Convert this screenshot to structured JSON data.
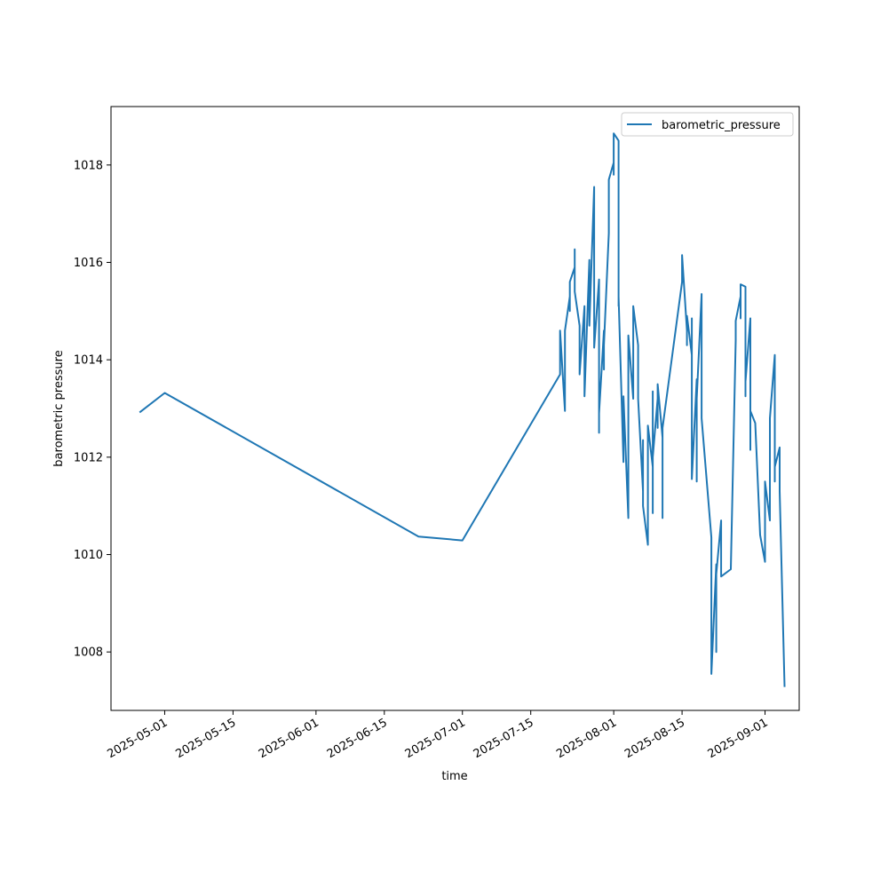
{
  "chart_data": {
    "type": "line",
    "title": "",
    "xlabel": "time",
    "ylabel": "barometric pressure",
    "x_is_date": true,
    "xlim": [
      "2025-04-20",
      "2025-09-08"
    ],
    "ylim": [
      1006.8,
      1019.2
    ],
    "x_ticks": [
      "2025-05-01",
      "2025-05-15",
      "2025-06-01",
      "2025-06-15",
      "2025-07-01",
      "2025-07-15",
      "2025-08-01",
      "2025-08-15",
      "2025-09-01"
    ],
    "y_ticks": [
      1008,
      1010,
      1012,
      1014,
      1016,
      1018
    ],
    "grid": false,
    "legend_position": "upper right",
    "colors": {
      "series": "#1f77b4"
    },
    "series": [
      {
        "name": "barometric_pressure",
        "points": [
          [
            "2025-04-26",
            1012.93
          ],
          [
            "2025-05-01",
            1013.32
          ],
          [
            "2025-06-22",
            1010.37
          ],
          [
            "2025-07-01",
            1010.29
          ],
          [
            "2025-07-21",
            1013.7
          ],
          [
            "2025-07-21",
            1014.6
          ],
          [
            "2025-07-22",
            1012.95
          ],
          [
            "2025-07-22",
            1014.6
          ],
          [
            "2025-07-23",
            1015.3
          ],
          [
            "2025-07-23",
            1015.0
          ],
          [
            "2025-07-23",
            1015.6
          ],
          [
            "2025-07-24",
            1015.9
          ],
          [
            "2025-07-24",
            1016.27
          ],
          [
            "2025-07-24",
            1015.4
          ],
          [
            "2025-07-25",
            1014.7
          ],
          [
            "2025-07-25",
            1014.0
          ],
          [
            "2025-07-25",
            1013.7
          ],
          [
            "2025-07-26",
            1015.1
          ],
          [
            "2025-07-26",
            1013.8
          ],
          [
            "2025-07-26",
            1014.9
          ],
          [
            "2025-07-26",
            1013.25
          ],
          [
            "2025-07-27",
            1016.05
          ],
          [
            "2025-07-27",
            1015.3
          ],
          [
            "2025-07-27",
            1014.7
          ],
          [
            "2025-07-28",
            1017.55
          ],
          [
            "2025-07-28",
            1014.6
          ],
          [
            "2025-07-28",
            1014.25
          ],
          [
            "2025-07-29",
            1015.65
          ],
          [
            "2025-07-29",
            1012.5
          ],
          [
            "2025-07-29",
            1013.1
          ],
          [
            "2025-07-29",
            1012.9
          ],
          [
            "2025-07-30",
            1014.6
          ],
          [
            "2025-07-30",
            1013.8
          ],
          [
            "2025-07-30",
            1014.3
          ],
          [
            "2025-07-31",
            1016.6
          ],
          [
            "2025-07-31",
            1017.7
          ],
          [
            "2025-08-01",
            1018.05
          ],
          [
            "2025-08-01",
            1017.8
          ],
          [
            "2025-08-01",
            1018.65
          ],
          [
            "2025-08-02",
            1018.5
          ],
          [
            "2025-08-02",
            1015.1
          ],
          [
            "2025-08-02",
            1015.75
          ],
          [
            "2025-08-02",
            1015.3
          ],
          [
            "2025-08-03",
            1011.9
          ],
          [
            "2025-08-03",
            1012.2
          ],
          [
            "2025-08-03",
            1012.0
          ],
          [
            "2025-08-03",
            1013.25
          ],
          [
            "2025-08-04",
            1010.75
          ],
          [
            "2025-08-04",
            1012.4
          ],
          [
            "2025-08-04",
            1014.5
          ],
          [
            "2025-08-05",
            1013.2
          ],
          [
            "2025-08-05",
            1013.9
          ],
          [
            "2025-08-05",
            1014.2
          ],
          [
            "2025-08-05",
            1015.1
          ],
          [
            "2025-08-06",
            1014.3
          ],
          [
            "2025-08-06",
            1013.4
          ],
          [
            "2025-08-06",
            1013.75
          ],
          [
            "2025-08-06",
            1013.2
          ],
          [
            "2025-08-07",
            1011.3
          ],
          [
            "2025-08-07",
            1011.05
          ],
          [
            "2025-08-07",
            1012.35
          ],
          [
            "2025-08-07",
            1011.0
          ],
          [
            "2025-08-08",
            1010.2
          ],
          [
            "2025-08-08",
            1011.5
          ],
          [
            "2025-08-08",
            1011.2
          ],
          [
            "2025-08-08",
            1012.65
          ],
          [
            "2025-08-09",
            1011.8
          ],
          [
            "2025-08-09",
            1010.85
          ],
          [
            "2025-08-09",
            1013.35
          ],
          [
            "2025-08-09",
            1012.0
          ],
          [
            "2025-08-10",
            1013.2
          ],
          [
            "2025-08-10",
            1012.6
          ],
          [
            "2025-08-10",
            1013.5
          ],
          [
            "2025-08-11",
            1012.4
          ],
          [
            "2025-08-11",
            1010.75
          ],
          [
            "2025-08-11",
            1012.6
          ],
          [
            "2025-08-15",
            1015.6
          ],
          [
            "2025-08-15",
            1016.15
          ],
          [
            "2025-08-16",
            1014.6
          ],
          [
            "2025-08-16",
            1014.3
          ],
          [
            "2025-08-16",
            1014.9
          ],
          [
            "2025-08-17",
            1014.1
          ],
          [
            "2025-08-17",
            1014.85
          ],
          [
            "2025-08-17",
            1011.55
          ],
          [
            "2025-08-18",
            1013.6
          ],
          [
            "2025-08-18",
            1011.5
          ],
          [
            "2025-08-18",
            1013.2
          ],
          [
            "2025-08-19",
            1015.35
          ],
          [
            "2025-08-19",
            1012.9
          ],
          [
            "2025-08-19",
            1013.6
          ],
          [
            "2025-08-19",
            1012.8
          ],
          [
            "2025-08-21",
            1010.35
          ],
          [
            "2025-08-21",
            1007.55
          ],
          [
            "2025-08-22",
            1009.8
          ],
          [
            "2025-08-22",
            1008.0
          ],
          [
            "2025-08-22",
            1009.6
          ],
          [
            "2025-08-23",
            1010.7
          ],
          [
            "2025-08-23",
            1009.55
          ],
          [
            "2025-08-25",
            1009.7
          ],
          [
            "2025-08-26",
            1014.4
          ],
          [
            "2025-08-26",
            1014.8
          ],
          [
            "2025-08-27",
            1015.3
          ],
          [
            "2025-08-27",
            1014.85
          ],
          [
            "2025-08-27",
            1015.55
          ],
          [
            "2025-08-28",
            1015.5
          ],
          [
            "2025-08-28",
            1014.5
          ],
          [
            "2025-08-28",
            1013.25
          ],
          [
            "2025-08-28",
            1013.55
          ],
          [
            "2025-08-29",
            1014.85
          ],
          [
            "2025-08-29",
            1012.15
          ],
          [
            "2025-08-29",
            1012.95
          ],
          [
            "2025-08-30",
            1012.7
          ],
          [
            "2025-08-31",
            1010.4
          ],
          [
            "2025-09-01",
            1009.85
          ],
          [
            "2025-09-01",
            1011.1
          ],
          [
            "2025-09-01",
            1011.5
          ],
          [
            "2025-09-02",
            1010.7
          ],
          [
            "2025-09-02",
            1011.55
          ],
          [
            "2025-09-02",
            1012.8
          ],
          [
            "2025-09-03",
            1014.1
          ],
          [
            "2025-09-03",
            1011.5
          ],
          [
            "2025-09-03",
            1011.8
          ],
          [
            "2025-09-04",
            1012.2
          ],
          [
            "2025-09-04",
            1011.3
          ],
          [
            "2025-09-05",
            1007.3
          ]
        ]
      }
    ]
  }
}
